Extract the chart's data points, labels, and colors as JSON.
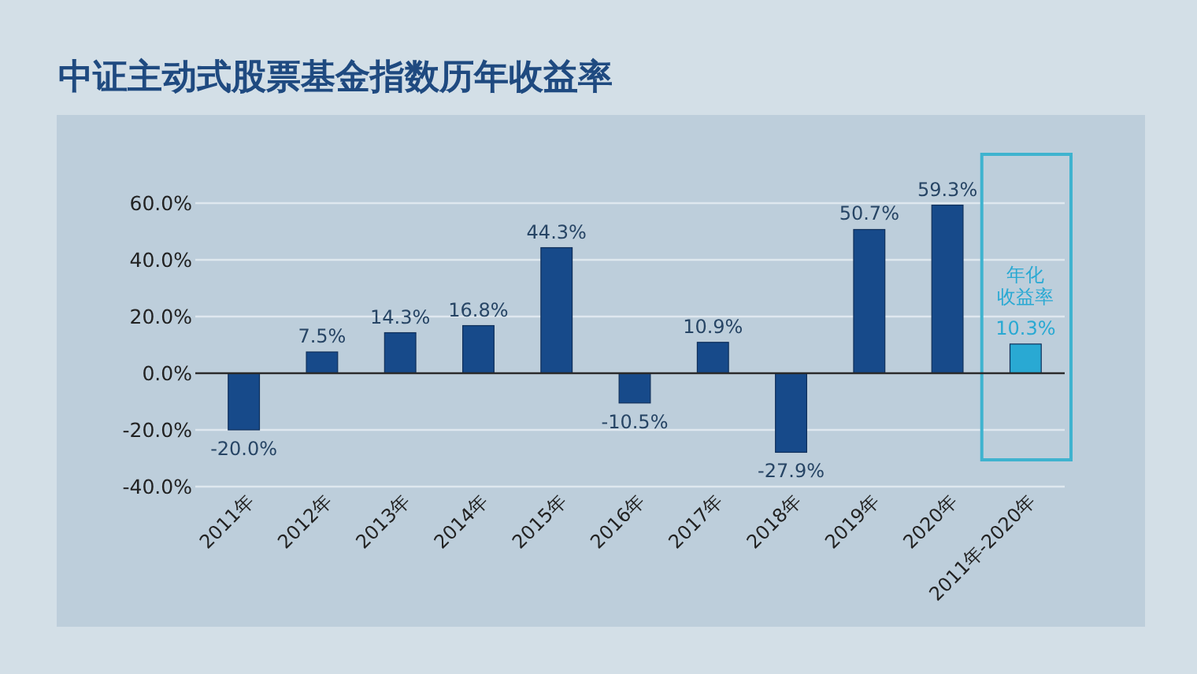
{
  "chart_data": {
    "type": "bar",
    "title": "中证主动式股票基金指数历年收益率",
    "categories": [
      "2011年",
      "2012年",
      "2013年",
      "2014年",
      "2015年",
      "2016年",
      "2017年",
      "2018年",
      "2019年",
      "2020年",
      "2011年-2020年"
    ],
    "values": [
      -20.0,
      7.5,
      14.3,
      16.8,
      44.3,
      -10.5,
      10.9,
      -27.9,
      50.7,
      59.3,
      10.3
    ],
    "colors": [
      "#174a8a",
      "#174a8a",
      "#174a8a",
      "#174a8a",
      "#174a8a",
      "#174a8a",
      "#174a8a",
      "#174a8a",
      "#174a8a",
      "#174a8a",
      "#29a9d3"
    ],
    "value_labels": [
      "-20.0%",
      "7.5%",
      "14.3%",
      "16.8%",
      "44.3%",
      "-10.5%",
      "10.9%",
      "-27.9%",
      "50.7%",
      "59.3%",
      "10.3%"
    ],
    "ylim": [
      -40,
      60
    ],
    "yticks": [
      {
        "value": -40,
        "label": "-40.0%"
      },
      {
        "value": -20,
        "label": "-20.0%"
      },
      {
        "value": 0,
        "label": "0.0%"
      },
      {
        "value": 20,
        "label": "20.0%"
      },
      {
        "value": 40,
        "label": "40.0%"
      },
      {
        "value": 60,
        "label": "60.0%"
      }
    ],
    "grid": "y",
    "ref_lines": [
      {
        "axis": "y",
        "value": 0,
        "color": "#2a2a2a"
      }
    ],
    "annotations": [
      {
        "text": "年化收益率",
        "x": "2011年-2020年",
        "y": 10.3
      }
    ]
  }
}
